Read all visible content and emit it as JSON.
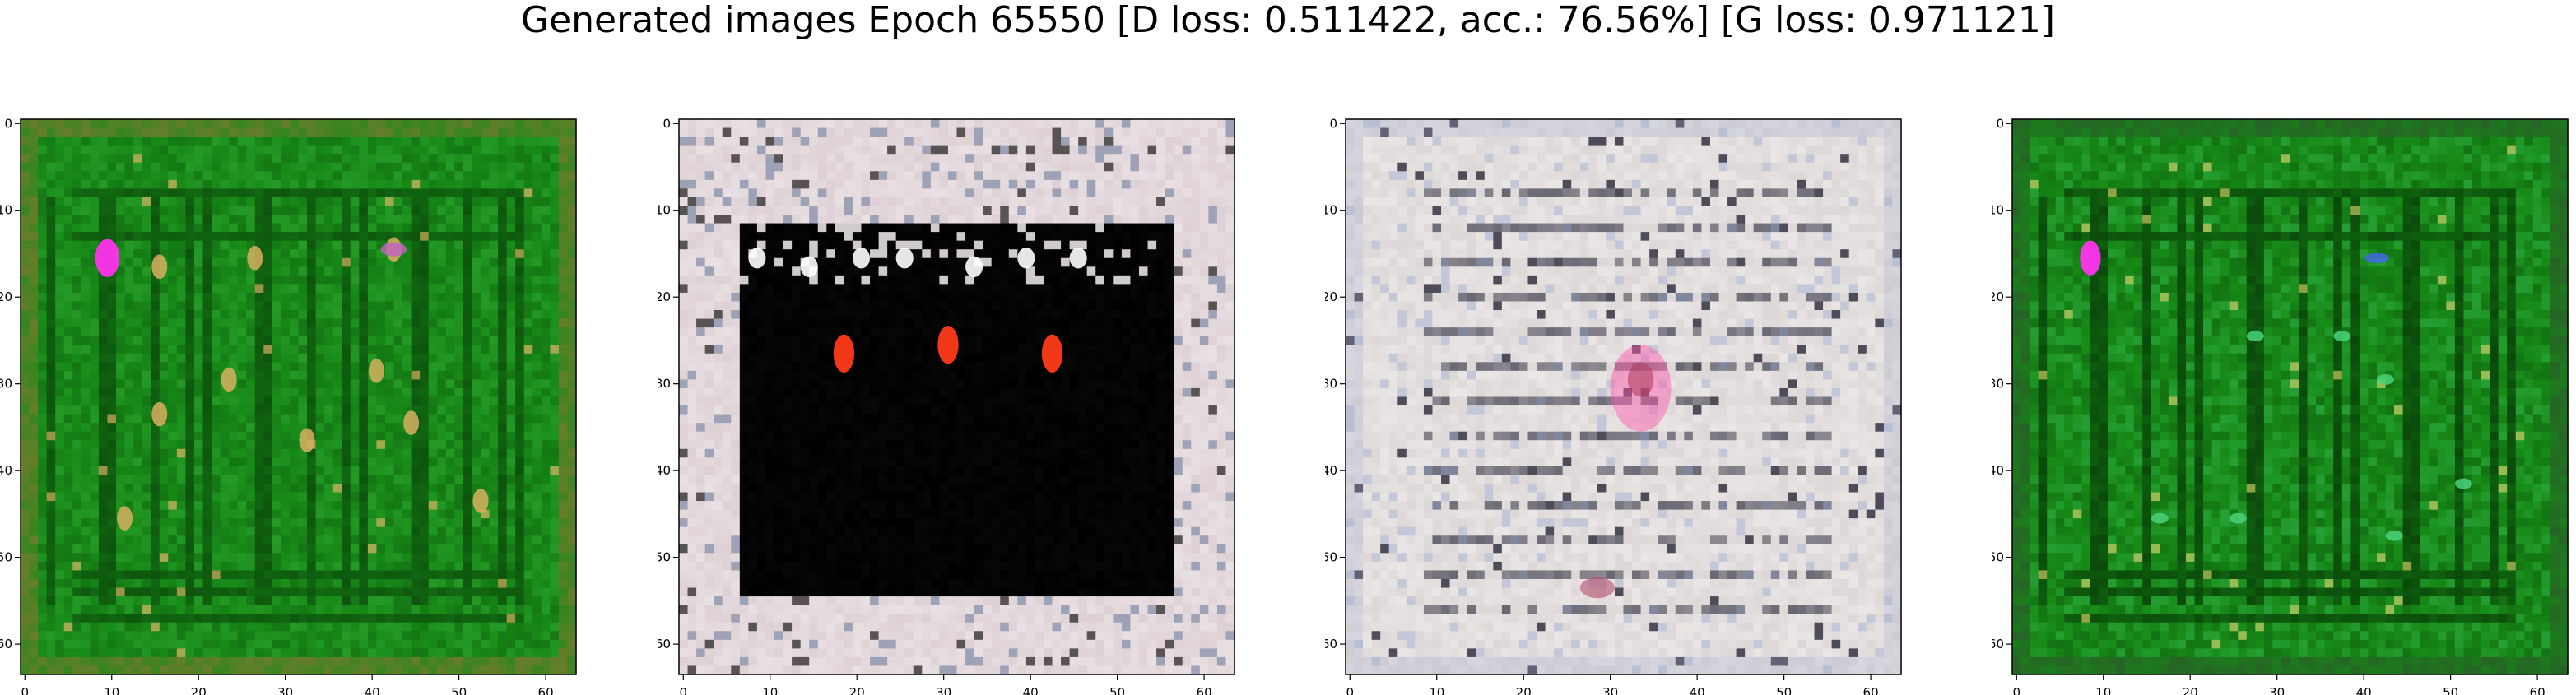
{
  "figure": {
    "title": "Generated images Epoch 65550 [D loss: 0.511422, acc.: 76.56%] [G loss: 0.971121]"
  },
  "panels": [
    {
      "name": "generated-image-1",
      "theme": "green",
      "palette": {
        "bg": "#188a18",
        "dark": "#0b4a0b",
        "light": "#45c04a",
        "accent": "#ff33ee",
        "spot": "#d8b060",
        "edge": "#7a7a30"
      },
      "x_ticks": [
        "0",
        "10",
        "20",
        "30",
        "40",
        "50",
        "60"
      ],
      "y_ticks": [
        "0",
        "10",
        "20",
        "30",
        "40",
        "50",
        "60"
      ]
    },
    {
      "name": "generated-image-2",
      "theme": "dark-center",
      "palette": {
        "bg": "#ddd0d4",
        "dark": "#000000",
        "light": "#f4eef0",
        "accent": "#ff3a1a",
        "spot": "#ffffff",
        "edge": "#6a7898"
      },
      "x_ticks": [
        "0",
        "10",
        "20",
        "30",
        "40",
        "50",
        "60"
      ],
      "y_ticks": [
        "0",
        "10",
        "20",
        "30",
        "40",
        "50",
        "60"
      ]
    },
    {
      "name": "generated-image-3",
      "theme": "light-noise",
      "palette": {
        "bg": "#dcd6d6",
        "dark": "#2a2a3a",
        "light": "#f3eeee",
        "accent": "#ff55aa",
        "spot": "#b04060",
        "edge": "#9aa8c8"
      },
      "x_ticks": [
        "0",
        "10",
        "20",
        "30",
        "40",
        "50",
        "60"
      ],
      "y_ticks": [
        "0",
        "10",
        "20",
        "30",
        "40",
        "50",
        "60"
      ]
    },
    {
      "name": "generated-image-4",
      "theme": "green",
      "palette": {
        "bg": "#178a17",
        "dark": "#083d08",
        "light": "#4ad27a",
        "accent": "#ff33ee",
        "spot": "#c8c860",
        "edge": "#2a5a2a"
      },
      "x_ticks": [
        "0",
        "10",
        "20",
        "30",
        "40",
        "50",
        "60"
      ],
      "y_ticks": [
        "0",
        "10",
        "20",
        "30",
        "40",
        "50",
        "60"
      ]
    }
  ]
}
